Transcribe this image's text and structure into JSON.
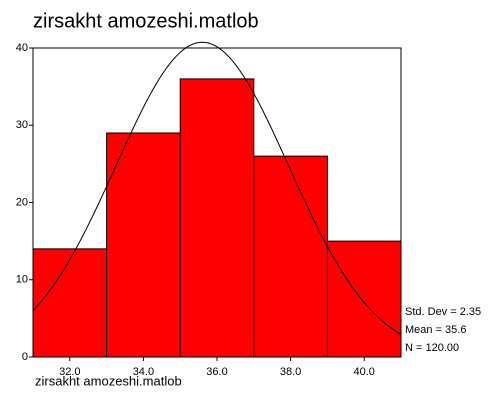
{
  "chart_data": {
    "type": "histogram",
    "title": "zirsakht amozeshi.matlob",
    "x_label": "zirsakht amozeshi.matlob",
    "bins": [
      31,
      33,
      35,
      37,
      39,
      41
    ],
    "values": [
      14,
      29,
      36,
      26,
      15
    ],
    "color": "#ff0000",
    "xlim": [
      31,
      41
    ],
    "xticks": [
      {
        "value": 32,
        "label": "32.0"
      },
      {
        "value": 34,
        "label": "34.0"
      },
      {
        "value": 36,
        "label": "36.0"
      },
      {
        "value": 38,
        "label": "38.0"
      },
      {
        "value": 40,
        "label": "40.0"
      }
    ],
    "ylim": [
      0,
      40
    ],
    "yticks": [
      0,
      10,
      20,
      30,
      40
    ],
    "stats": {
      "std_dev": {
        "value": 2.35,
        "label": "Std. Dev = 2.35"
      },
      "mean": {
        "value": 35.6,
        "label": "Mean = 35.6"
      },
      "n": {
        "value": 120,
        "label": "N = 120.00"
      }
    }
  }
}
